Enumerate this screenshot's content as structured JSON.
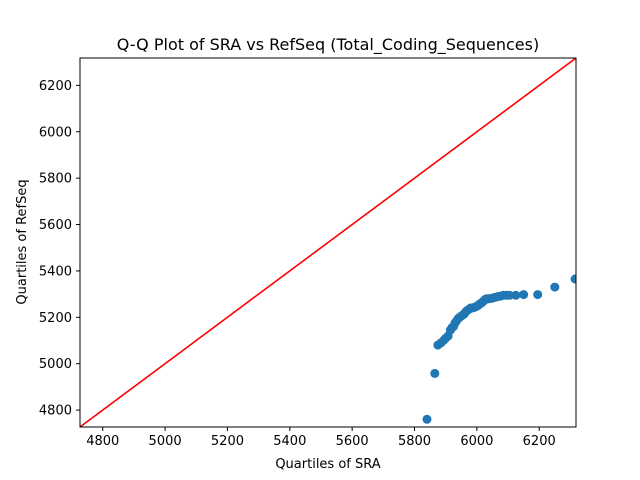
{
  "chart_data": {
    "type": "scatter",
    "title": "Q-Q Plot of SRA vs RefSeq (Total_Coding_Sequences)",
    "xlabel": "Quartiles of SRA",
    "ylabel": "Quartiles of RefSeq",
    "xlim": [
      4727,
      6318
    ],
    "ylim": [
      4727,
      6318
    ],
    "xticks": [
      4800,
      5000,
      5200,
      5400,
      5600,
      5800,
      6000,
      6200
    ],
    "yticks": [
      4800,
      5000,
      5200,
      5400,
      5600,
      5800,
      6000,
      6200
    ],
    "grid": false,
    "legend": "none",
    "points_color": "#1f77b4",
    "reference_line_color": "#ff0000",
    "reference_line": {
      "x": [
        4727,
        6318
      ],
      "y": [
        4727,
        6318
      ]
    },
    "series": [
      {
        "x": [
          5840,
          5865,
          5875,
          5885,
          5893,
          5900,
          5908,
          5915,
          5920,
          5925,
          5930,
          5935,
          5940,
          5945,
          5950,
          5955,
          5960,
          5965,
          5970,
          5975,
          5980,
          5985,
          5990,
          5995,
          6000,
          6005,
          6010,
          6015,
          6020,
          6025,
          6030,
          6035,
          6040,
          6048,
          6055,
          6062,
          6070,
          6078,
          6085,
          6095,
          6105,
          6125,
          6150,
          6195,
          6250,
          6315
        ],
        "y": [
          4760,
          4958,
          5080,
          5090,
          5100,
          5110,
          5120,
          5145,
          5155,
          5160,
          5175,
          5185,
          5195,
          5200,
          5205,
          5210,
          5215,
          5225,
          5230,
          5235,
          5240,
          5240,
          5242,
          5245,
          5248,
          5252,
          5258,
          5262,
          5268,
          5275,
          5280,
          5280,
          5280,
          5282,
          5285,
          5287,
          5290,
          5292,
          5295,
          5295,
          5295,
          5295,
          5298,
          5298,
          5330,
          5365
        ]
      }
    ]
  }
}
